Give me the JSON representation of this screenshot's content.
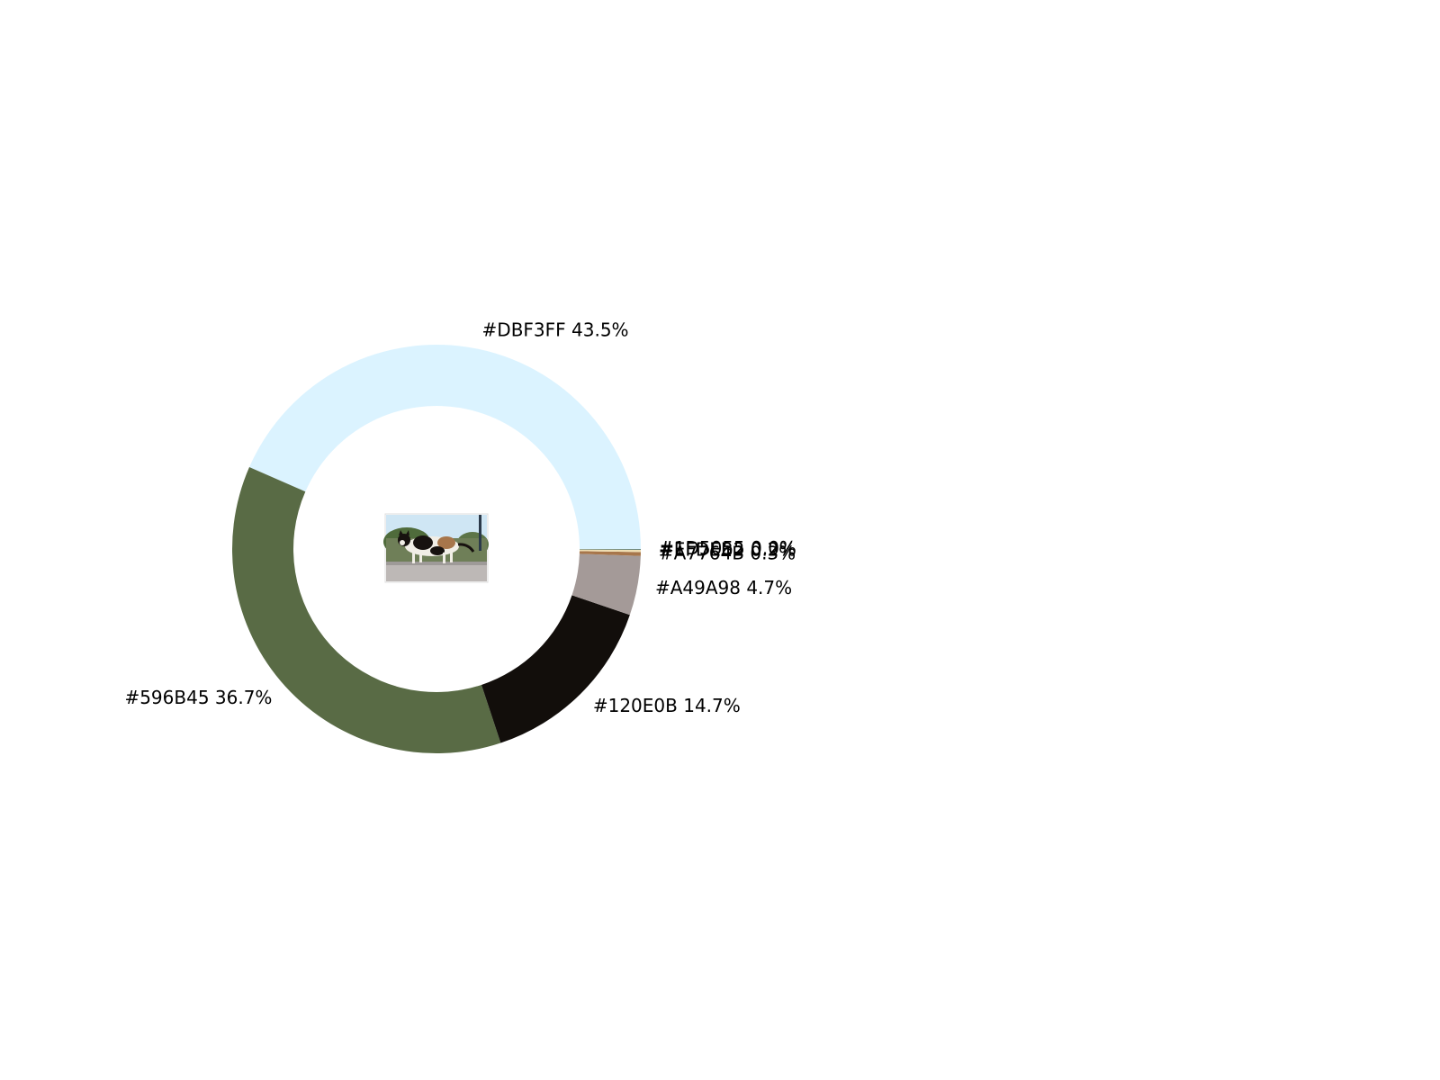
{
  "chart_data": {
    "type": "pie",
    "style": "donut",
    "title": "",
    "start_angle_deg": 0,
    "direction": "counterclockwise",
    "slices": [
      {
        "label": "#DBF3FF 43.5%",
        "color": "#DBF3FF",
        "value": 43.5
      },
      {
        "label": "#596B45 36.7%",
        "color": "#596B45",
        "value": 36.7
      },
      {
        "label": "#120E0B 14.7%",
        "color": "#120E0B",
        "value": 14.7
      },
      {
        "label": "#A49A98 4.7%",
        "color": "#A49A98",
        "value": 4.7
      },
      {
        "label": "#A7764B 0.3%",
        "color": "#A7764B",
        "value": 0.3
      },
      {
        "label": "#EFDEB2 0.2%",
        "color": "#EFDEB2",
        "value": 0.2
      },
      {
        "label": "#1D5055 0.0%",
        "color": "#1D5055",
        "value": 0.04
      }
    ],
    "center_image": "calico-cat-walking-on-stone-wall",
    "legend": "none",
    "grid": false
  }
}
